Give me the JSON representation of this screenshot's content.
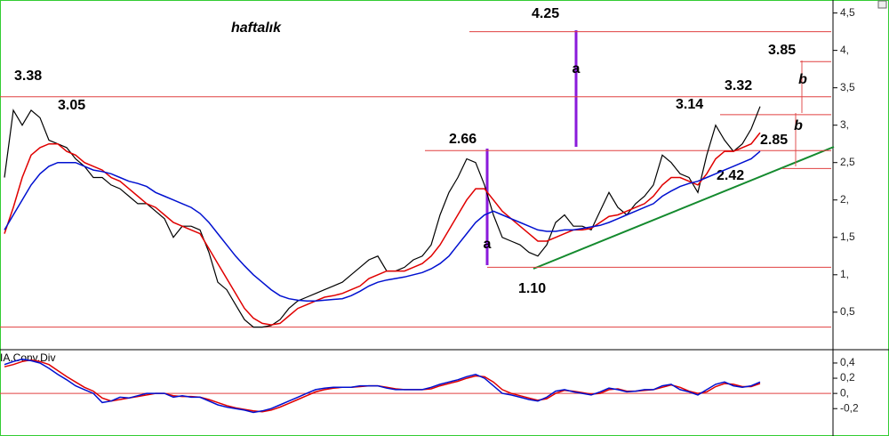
{
  "chart_data": [
    {
      "type": "line",
      "title": "haftalık",
      "ylim": [
        0.01,
        4.65
      ],
      "yticks": [
        {
          "value": 0.5,
          "label": "0,5"
        },
        {
          "value": 1,
          "label": "1,"
        },
        {
          "value": 1.5,
          "label": "1,5"
        },
        {
          "value": 2,
          "label": "2,"
        },
        {
          "value": 2.5,
          "label": "2,5"
        },
        {
          "value": 3,
          "label": "3,"
        },
        {
          "value": 3.5,
          "label": "3,5"
        },
        {
          "value": 4,
          "label": "4,"
        },
        {
          "value": 4.5,
          "label": "4,5"
        }
      ],
      "series": [
        {
          "color": "#000000",
          "values": [
            2.3,
            3.2,
            3.0,
            3.2,
            3.1,
            2.8,
            2.75,
            2.7,
            2.55,
            2.45,
            2.3,
            2.3,
            2.2,
            2.15,
            2.05,
            1.95,
            1.95,
            1.85,
            1.75,
            1.5,
            1.65,
            1.65,
            1.6,
            1.3,
            0.9,
            0.8,
            0.6,
            0.4,
            0.3,
            0.3,
            0.32,
            0.4,
            0.55,
            0.65,
            0.7,
            0.75,
            0.8,
            0.85,
            0.9,
            1.0,
            1.1,
            1.2,
            1.25,
            1.05,
            1.05,
            1.1,
            1.2,
            1.25,
            1.4,
            1.8,
            2.1,
            2.3,
            2.55,
            2.5,
            2.2,
            1.8,
            1.5,
            1.45,
            1.4,
            1.3,
            1.25,
            1.4,
            1.7,
            1.8,
            1.65,
            1.65,
            1.6,
            1.85,
            2.1,
            1.9,
            1.8,
            1.95,
            2.05,
            2.2,
            2.6,
            2.5,
            2.35,
            2.3,
            2.1,
            2.6,
            3.0,
            2.8,
            2.65,
            2.75,
            2.95,
            3.25
          ]
        },
        {
          "color": "#e00000",
          "values": [
            1.55,
            1.9,
            2.3,
            2.6,
            2.7,
            2.75,
            2.75,
            2.65,
            2.6,
            2.5,
            2.45,
            2.4,
            2.3,
            2.25,
            2.15,
            2.05,
            1.95,
            1.9,
            1.8,
            1.7,
            1.65,
            1.6,
            1.55,
            1.35,
            1.15,
            0.95,
            0.75,
            0.55,
            0.42,
            0.35,
            0.33,
            0.35,
            0.45,
            0.55,
            0.6,
            0.65,
            0.7,
            0.72,
            0.75,
            0.8,
            0.85,
            0.95,
            1.0,
            1.05,
            1.05,
            1.05,
            1.1,
            1.15,
            1.25,
            1.4,
            1.6,
            1.8,
            2.0,
            2.15,
            2.15,
            2.0,
            1.85,
            1.75,
            1.65,
            1.55,
            1.45,
            1.45,
            1.5,
            1.55,
            1.6,
            1.6,
            1.62,
            1.7,
            1.78,
            1.8,
            1.85,
            1.9,
            1.95,
            2.05,
            2.2,
            2.3,
            2.3,
            2.25,
            2.2,
            2.35,
            2.55,
            2.65,
            2.65,
            2.7,
            2.75,
            2.9
          ]
        },
        {
          "color": "#0010d0",
          "values": [
            1.6,
            1.8,
            2.0,
            2.2,
            2.35,
            2.45,
            2.5,
            2.5,
            2.5,
            2.45,
            2.4,
            2.38,
            2.35,
            2.3,
            2.25,
            2.22,
            2.18,
            2.1,
            2.05,
            2.0,
            1.95,
            1.9,
            1.82,
            1.7,
            1.55,
            1.4,
            1.25,
            1.12,
            1.0,
            0.9,
            0.8,
            0.72,
            0.68,
            0.66,
            0.65,
            0.65,
            0.66,
            0.67,
            0.68,
            0.72,
            0.78,
            0.85,
            0.9,
            0.93,
            0.95,
            0.97,
            1.0,
            1.03,
            1.08,
            1.15,
            1.25,
            1.4,
            1.55,
            1.7,
            1.8,
            1.85,
            1.8,
            1.75,
            1.7,
            1.65,
            1.6,
            1.58,
            1.58,
            1.6,
            1.6,
            1.62,
            1.64,
            1.66,
            1.7,
            1.75,
            1.8,
            1.85,
            1.9,
            1.95,
            2.05,
            2.12,
            2.18,
            2.22,
            2.25,
            2.3,
            2.35,
            2.4,
            2.45,
            2.5,
            2.55,
            2.65
          ]
        }
      ],
      "levels": [
        {
          "value": 4.25,
          "label": "4.25"
        },
        {
          "value": 3.38,
          "label": "3.38"
        },
        {
          "value": 3.05,
          "label": "3.05"
        },
        {
          "value": 3.85,
          "label": "3.85"
        },
        {
          "value": 3.32,
          "label": "3.32"
        },
        {
          "value": 3.14,
          "label": "3.14"
        },
        {
          "value": 2.66,
          "label": "2.66"
        },
        {
          "value": 2.85,
          "label": "2.85"
        },
        {
          "value": 2.42,
          "label": "2.42"
        },
        {
          "value": 1.1,
          "label": "1.10"
        },
        {
          "value": 0.3
        }
      ],
      "annotations": [
        "a",
        "a",
        "b",
        "b"
      ]
    },
    {
      "type": "line",
      "title": "IA.Conv.Div",
      "ylim": [
        -0.56,
        0.54
      ],
      "yticks": [
        {
          "value": 0.4,
          "label": "0,4"
        },
        {
          "value": 0.2,
          "label": "0,2"
        },
        {
          "value": 0,
          "label": "0,"
        },
        {
          "value": -0.2,
          "label": "-0,2"
        }
      ],
      "series": [
        {
          "color": "#e00000",
          "values": [
            0.35,
            0.38,
            0.42,
            0.44,
            0.42,
            0.38,
            0.3,
            0.22,
            0.15,
            0.08,
            0.03,
            -0.06,
            -0.1,
            -0.08,
            -0.06,
            -0.04,
            -0.02,
            0.0,
            0.0,
            -0.03,
            -0.04,
            -0.04,
            -0.05,
            -0.08,
            -0.12,
            -0.16,
            -0.19,
            -0.21,
            -0.23,
            -0.24,
            -0.22,
            -0.18,
            -0.13,
            -0.08,
            -0.03,
            0.02,
            0.05,
            0.07,
            0.08,
            0.08,
            0.09,
            0.1,
            0.1,
            0.08,
            0.06,
            0.05,
            0.05,
            0.05,
            0.06,
            0.1,
            0.13,
            0.16,
            0.2,
            0.23,
            0.22,
            0.15,
            0.05,
            0.0,
            -0.03,
            -0.06,
            -0.09,
            -0.07,
            0.0,
            0.04,
            0.03,
            0.01,
            -0.01,
            0.0,
            0.05,
            0.06,
            0.03,
            0.03,
            0.04,
            0.05,
            0.08,
            0.11,
            0.08,
            0.03,
            0.0,
            0.02,
            0.09,
            0.13,
            0.12,
            0.09,
            0.09,
            0.13
          ]
        },
        {
          "color": "#0010d0",
          "values": [
            0.38,
            0.42,
            0.45,
            0.43,
            0.4,
            0.33,
            0.25,
            0.18,
            0.1,
            0.05,
            0.0,
            -0.12,
            -0.1,
            -0.05,
            -0.06,
            -0.03,
            0.0,
            0.0,
            0.0,
            -0.05,
            -0.03,
            -0.05,
            -0.05,
            -0.1,
            -0.15,
            -0.18,
            -0.2,
            -0.22,
            -0.25,
            -0.23,
            -0.2,
            -0.15,
            -0.1,
            -0.05,
            0.0,
            0.05,
            0.07,
            0.08,
            0.08,
            0.08,
            0.1,
            0.1,
            0.1,
            0.07,
            0.05,
            0.05,
            0.05,
            0.05,
            0.08,
            0.12,
            0.15,
            0.18,
            0.22,
            0.25,
            0.2,
            0.1,
            0.0,
            -0.02,
            -0.05,
            -0.08,
            -0.1,
            -0.05,
            0.03,
            0.05,
            0.02,
            0.0,
            -0.02,
            0.02,
            0.07,
            0.05,
            0.02,
            0.03,
            0.05,
            0.05,
            0.1,
            0.12,
            0.05,
            0.02,
            -0.02,
            0.05,
            0.12,
            0.15,
            0.1,
            0.08,
            0.1,
            0.15
          ]
        }
      ],
      "levels": [
        {
          "value": 0
        }
      ]
    }
  ]
}
